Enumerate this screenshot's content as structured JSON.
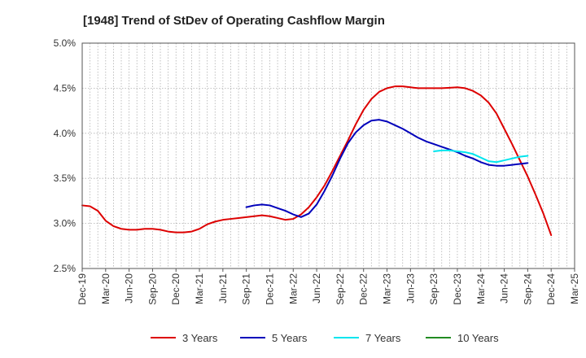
{
  "chart_data": {
    "type": "line",
    "title": "[1948]  Trend of StDev of Operating Cashflow Margin",
    "xlabel": "",
    "ylabel": "",
    "x_start": "2019-12",
    "x_step_months": 1,
    "x_ticks": [
      "Dec-19",
      "Mar-20",
      "Jun-20",
      "Sep-20",
      "Dec-20",
      "Mar-21",
      "Jun-21",
      "Sep-21",
      "Dec-21",
      "Mar-22",
      "Jun-22",
      "Sep-22",
      "Dec-22",
      "Mar-23",
      "Jun-23",
      "Sep-23",
      "Dec-23",
      "Mar-24",
      "Jun-24",
      "Sep-24",
      "Dec-24",
      "Mar-25"
    ],
    "y_ticks": [
      "2.5%",
      "3.0%",
      "3.5%",
      "4.0%",
      "4.5%",
      "5.0%"
    ],
    "ylim": [
      2.5,
      5.0
    ],
    "grid": true,
    "legend_position": "bottom",
    "series": [
      {
        "name": "3 Years",
        "color": "#dd0000",
        "start": "2019-12",
        "values": [
          3.2,
          3.19,
          3.14,
          3.03,
          2.97,
          2.94,
          2.93,
          2.93,
          2.94,
          2.94,
          2.93,
          2.91,
          2.9,
          2.9,
          2.91,
          2.94,
          2.99,
          3.02,
          3.04,
          3.05,
          3.06,
          3.07,
          3.08,
          3.09,
          3.08,
          3.06,
          3.04,
          3.05,
          3.1,
          3.18,
          3.29,
          3.42,
          3.58,
          3.75,
          3.92,
          4.1,
          4.26,
          4.38,
          4.46,
          4.5,
          4.52,
          4.52,
          4.51,
          4.5,
          4.5,
          4.5,
          4.5,
          4.505,
          4.51,
          4.5,
          4.47,
          4.42,
          4.34,
          4.22,
          4.05,
          3.88,
          3.7,
          3.52,
          3.32,
          3.11,
          2.87
        ]
      },
      {
        "name": "5 Years",
        "color": "#0000bb",
        "start": "2021-09",
        "values": [
          3.18,
          3.2,
          3.21,
          3.2,
          3.17,
          3.14,
          3.1,
          3.07,
          3.11,
          3.21,
          3.36,
          3.53,
          3.72,
          3.89,
          4.01,
          4.09,
          4.14,
          4.15,
          4.13,
          4.09,
          4.05,
          4.0,
          3.95,
          3.91,
          3.88,
          3.85,
          3.82,
          3.79,
          3.75,
          3.72,
          3.68,
          3.65,
          3.64,
          3.64,
          3.65,
          3.66,
          3.67
        ]
      },
      {
        "name": "7 Years",
        "color": "#00e5ee",
        "start": "2023-09",
        "values": [
          3.8,
          3.81,
          3.81,
          3.8,
          3.79,
          3.77,
          3.73,
          3.69,
          3.68,
          3.7,
          3.72,
          3.74,
          3.75
        ]
      },
      {
        "name": "10 Years",
        "color": "#228b22",
        "start": "2023-09",
        "values": []
      }
    ]
  }
}
